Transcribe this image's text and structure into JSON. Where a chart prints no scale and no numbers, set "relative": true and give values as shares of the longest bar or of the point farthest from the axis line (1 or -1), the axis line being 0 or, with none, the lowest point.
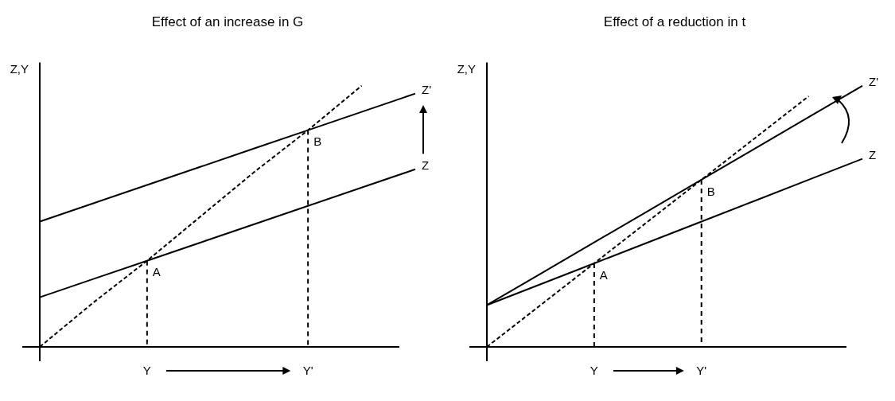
{
  "chart_data": [
    {
      "type": "line",
      "title": "Effect of an increase in G",
      "ylabel": "Z,Y",
      "relative": true,
      "tick_labels": "x",
      "categories": [
        null,
        null,
        "Y",
        null,
        null,
        "Y'",
        null,
        null
      ],
      "series": [
        {
          "name": "Z'",
          "color": "#000000",
          "values": [
            0.48,
            0.55,
            0.62,
            0.69,
            0.76,
            0.83,
            0.9,
            0.97
          ]
        },
        {
          "name": "Z",
          "color": "#000000",
          "values": [
            0.19,
            0.26,
            0.33,
            0.4,
            0.47,
            0.54,
            0.61,
            0.68
          ]
        },
        {
          "color": "#000000",
          "line_style": "dashed",
          "values": [
            0,
            0.17,
            0.33,
            0.5,
            0.67,
            0.83,
            1.0,
            null
          ]
        }
      ],
      "annotations": [
        {
          "text": "A",
          "x": "Y",
          "y": 0.33
        },
        {
          "text": "B",
          "x": "Y'",
          "y": 0.83
        }
      ]
    },
    {
      "type": "line",
      "title": "Effect of a reduction in t",
      "ylabel": "Z,Y",
      "relative": true,
      "tick_labels": "x",
      "categories": [
        null,
        null,
        "Y",
        null,
        "Y'",
        null,
        null,
        null
      ],
      "series": [
        {
          "name": "Z'",
          "color": "#000000",
          "values": [
            0.16,
            0.28,
            0.4,
            0.52,
            0.64,
            0.76,
            0.88,
            1.0
          ]
        },
        {
          "name": "Z",
          "color": "#000000",
          "values": [
            0.16,
            0.24,
            0.32,
            0.4,
            0.48,
            0.56,
            0.64,
            0.72
          ]
        },
        {
          "color": "#000000",
          "line_style": "dashed",
          "values": [
            0,
            0.16,
            0.32,
            0.48,
            0.64,
            0.8,
            0.96,
            null
          ]
        }
      ],
      "annotations": [
        {
          "text": "A",
          "x": "Y",
          "y": 0.32
        },
        {
          "text": "B",
          "x": "Y'",
          "y": 0.64
        }
      ]
    }
  ]
}
